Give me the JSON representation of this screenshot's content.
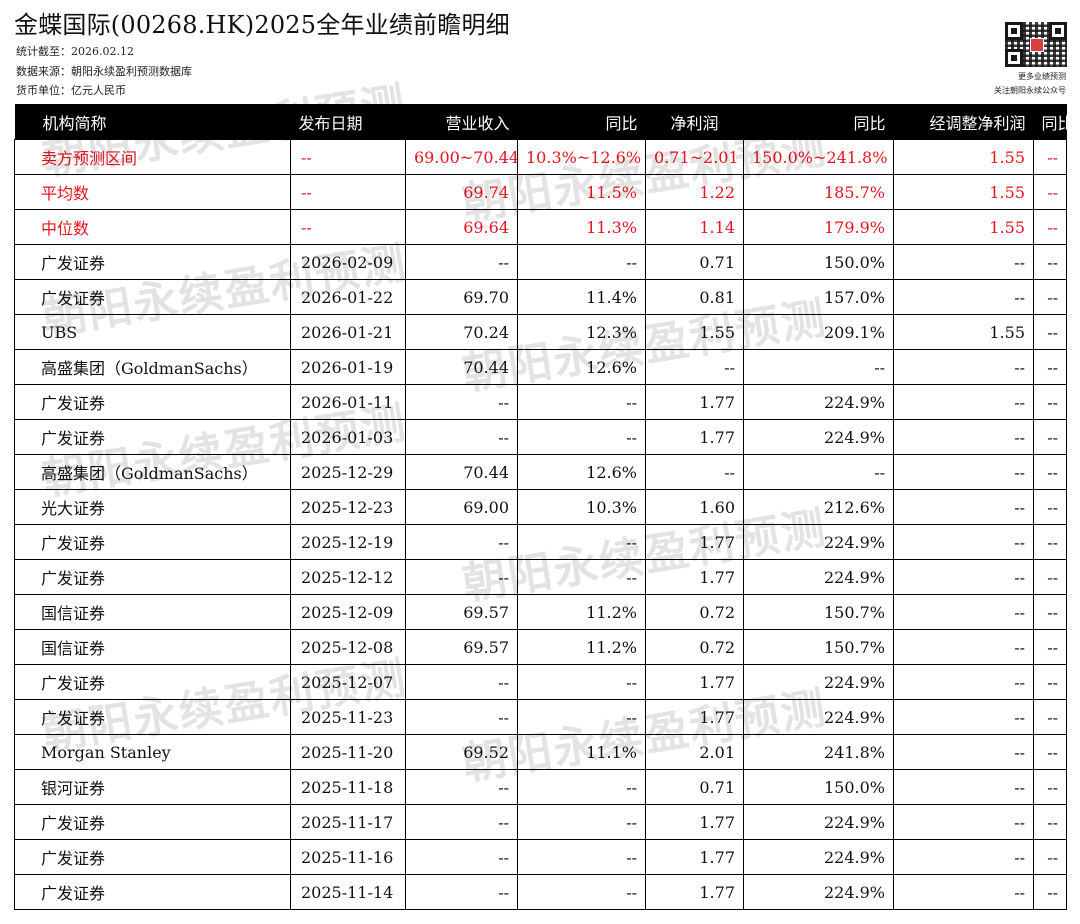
{
  "header": {
    "title": "金蝶国际(00268.HK)2025全年业绩前瞻明细",
    "stat_date": "统计截至：2026.02.12",
    "data_source": "数据来源：朝阳永续盈利预测数据库",
    "currency": "货币单位：亿元人民币",
    "qr_caption_1": "更多业绩预测",
    "qr_caption_2": "关注朝阳永续公众号"
  },
  "watermark": "朝阳永续盈利预测",
  "columns": [
    "机构简称",
    "发布日期",
    "营业收入",
    "同比",
    "净利润",
    "同比",
    "经调整净利润",
    "同比"
  ],
  "summary_rows": [
    [
      "卖方预测区间",
      "--",
      "69.00~70.44",
      "10.3%~12.6%",
      "0.71~2.01",
      "150.0%~241.8%",
      "1.55",
      "--"
    ],
    [
      "平均数",
      "--",
      "69.74",
      "11.5%",
      "1.22",
      "185.7%",
      "1.55",
      "--"
    ],
    [
      "中位数",
      "--",
      "69.64",
      "11.3%",
      "1.14",
      "179.9%",
      "1.55",
      "--"
    ]
  ],
  "rows": [
    [
      "广发证券",
      "2026-02-09",
      "--",
      "--",
      "0.71",
      "150.0%",
      "--",
      "--"
    ],
    [
      "广发证券",
      "2026-01-22",
      "69.70",
      "11.4%",
      "0.81",
      "157.0%",
      "--",
      "--"
    ],
    [
      "UBS",
      "2026-01-21",
      "70.24",
      "12.3%",
      "1.55",
      "209.1%",
      "1.55",
      "--"
    ],
    [
      "高盛集团（GoldmanSachs）",
      "2026-01-19",
      "70.44",
      "12.6%",
      "--",
      "--",
      "--",
      "--"
    ],
    [
      "广发证券",
      "2026-01-11",
      "--",
      "--",
      "1.77",
      "224.9%",
      "--",
      "--"
    ],
    [
      "广发证券",
      "2026-01-03",
      "--",
      "--",
      "1.77",
      "224.9%",
      "--",
      "--"
    ],
    [
      "高盛集团（GoldmanSachs）",
      "2025-12-29",
      "70.44",
      "12.6%",
      "--",
      "--",
      "--",
      "--"
    ],
    [
      "光大证券",
      "2025-12-23",
      "69.00",
      "10.3%",
      "1.60",
      "212.6%",
      "--",
      "--"
    ],
    [
      "广发证券",
      "2025-12-19",
      "--",
      "--",
      "1.77",
      "224.9%",
      "--",
      "--"
    ],
    [
      "广发证券",
      "2025-12-12",
      "--",
      "--",
      "1.77",
      "224.9%",
      "--",
      "--"
    ],
    [
      "国信证券",
      "2025-12-09",
      "69.57",
      "11.2%",
      "0.72",
      "150.7%",
      "--",
      "--"
    ],
    [
      "国信证券",
      "2025-12-08",
      "69.57",
      "11.2%",
      "0.72",
      "150.7%",
      "--",
      "--"
    ],
    [
      "广发证券",
      "2025-12-07",
      "--",
      "--",
      "1.77",
      "224.9%",
      "--",
      "--"
    ],
    [
      "广发证券",
      "2025-11-23",
      "--",
      "--",
      "1.77",
      "224.9%",
      "--",
      "--"
    ],
    [
      "Morgan Stanley",
      "2025-11-20",
      "69.52",
      "11.1%",
      "2.01",
      "241.8%",
      "--",
      "--"
    ],
    [
      "银河证券",
      "2025-11-18",
      "--",
      "--",
      "0.71",
      "150.0%",
      "--",
      "--"
    ],
    [
      "广发证券",
      "2025-11-17",
      "--",
      "--",
      "1.77",
      "224.9%",
      "--",
      "--"
    ],
    [
      "广发证券",
      "2025-11-16",
      "--",
      "--",
      "1.77",
      "224.9%",
      "--",
      "--"
    ],
    [
      "广发证券",
      "2025-11-14",
      "--",
      "--",
      "1.77",
      "224.9%",
      "--",
      "--"
    ]
  ],
  "colors": {
    "header_bg": "#000000",
    "highlight_text": "#e8141e"
  }
}
